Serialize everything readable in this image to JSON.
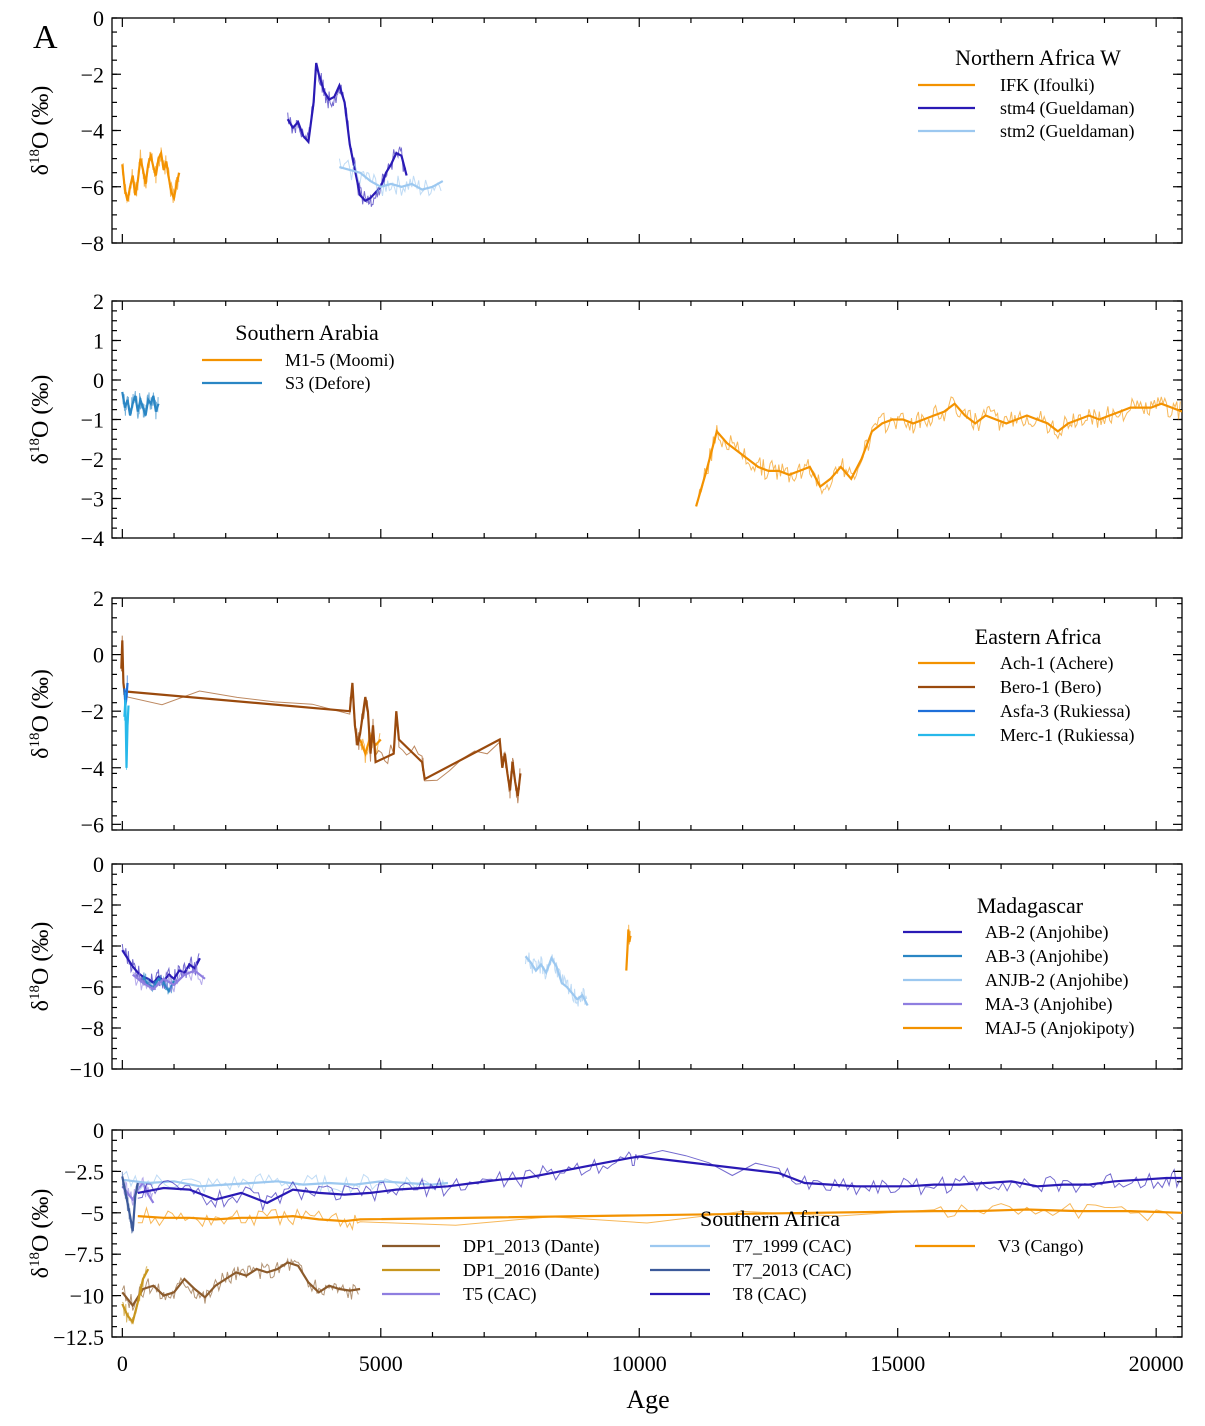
{
  "figure": {
    "panel_letter": "A",
    "xlabel": "Age",
    "ylabel": "δ18O (‰)",
    "ylabel_main": "δ",
    "ylabel_sup": "18",
    "ylabel_rest": "O (‰)"
  },
  "chart_data": [
    {
      "type": "line",
      "title": "Northern Africa W",
      "legend_position": "top-right",
      "xlim": [
        -200,
        20500
      ],
      "ylim": [
        -8,
        0
      ],
      "yticks": [
        0,
        -2,
        -4,
        -6,
        -8
      ],
      "ytick_labels": [
        "0",
        "−2",
        "−4",
        "−6",
        "−8"
      ],
      "xticks": [
        0,
        5000,
        10000,
        15000,
        20000
      ],
      "series": [
        {
          "name": "IFK (Ifoulki)",
          "color": "#f39200",
          "x": [
            0,
            50,
            100,
            150,
            200,
            250,
            300,
            350,
            400,
            450,
            500,
            550,
            600,
            650,
            700,
            750,
            800,
            850,
            900,
            950,
            1000,
            1050,
            1100
          ],
          "y": [
            -5.2,
            -6.1,
            -6.5,
            -6.0,
            -5.6,
            -6.3,
            -5.8,
            -5.0,
            -5.4,
            -5.9,
            -5.2,
            -4.9,
            -5.3,
            -5.6,
            -5.0,
            -4.8,
            -5.4,
            -5.1,
            -5.7,
            -6.2,
            -6.4,
            -5.9,
            -5.5
          ]
        },
        {
          "name": "stm4 (Gueldaman)",
          "color": "#2a1ab5",
          "x": [
            3200,
            3300,
            3400,
            3500,
            3600,
            3700,
            3750,
            3800,
            3900,
            4000,
            4100,
            4200,
            4300,
            4400,
            4500,
            4600,
            4700,
            4800,
            4900,
            5000,
            5100,
            5200,
            5300,
            5400,
            5500
          ],
          "y": [
            -3.6,
            -3.9,
            -3.7,
            -4.2,
            -4.4,
            -3.0,
            -1.6,
            -2.0,
            -2.6,
            -2.9,
            -2.8,
            -2.4,
            -3.0,
            -4.5,
            -5.4,
            -6.3,
            -6.5,
            -6.4,
            -6.2,
            -6.0,
            -5.5,
            -5.2,
            -4.8,
            -4.9,
            -5.6
          ]
        },
        {
          "name": "stm2 (Gueldaman)",
          "color": "#9cc8f0",
          "x": [
            4200,
            4400,
            4600,
            4800,
            5000,
            5200,
            5400,
            5600,
            5800,
            6000,
            6200
          ],
          "y": [
            -5.3,
            -5.4,
            -5.5,
            -5.8,
            -6.0,
            -5.9,
            -6.0,
            -5.9,
            -6.1,
            -6.0,
            -5.8
          ]
        }
      ]
    },
    {
      "type": "line",
      "title": "Southern Arabia",
      "legend_position": "top-left",
      "xlim": [
        -200,
        20500
      ],
      "ylim": [
        -4,
        2
      ],
      "yticks": [
        2,
        1,
        0,
        -1,
        -2,
        -3,
        -4
      ],
      "ytick_labels": [
        "2",
        "1",
        "0",
        "−1",
        "−2",
        "−3",
        "−4"
      ],
      "xticks": [
        0,
        5000,
        10000,
        15000,
        20000
      ],
      "series": [
        {
          "name": "M1-5 (Moomi)",
          "color": "#f39200",
          "x": [
            11100,
            11300,
            11500,
            11700,
            11900,
            12100,
            12300,
            12500,
            12700,
            12900,
            13100,
            13300,
            13500,
            13700,
            13900,
            14100,
            14300,
            14500,
            14700,
            14900,
            15100,
            15300,
            15500,
            15700,
            15900,
            16100,
            16300,
            16500,
            16700,
            16900,
            17100,
            17300,
            17500,
            17700,
            17900,
            18100,
            18300,
            18500,
            18700,
            18900,
            19100,
            19300,
            19500,
            19700,
            19900,
            20100,
            20300,
            20500
          ],
          "y": [
            -3.2,
            -2.3,
            -1.3,
            -1.6,
            -1.8,
            -2.0,
            -2.2,
            -2.3,
            -2.3,
            -2.4,
            -2.3,
            -2.2,
            -2.7,
            -2.5,
            -2.2,
            -2.5,
            -2.0,
            -1.3,
            -1.1,
            -1.0,
            -1.0,
            -1.1,
            -1.0,
            -0.9,
            -0.8,
            -0.6,
            -0.9,
            -1.1,
            -0.9,
            -1.0,
            -1.1,
            -1.0,
            -0.9,
            -1.0,
            -1.1,
            -1.3,
            -1.1,
            -1.0,
            -0.9,
            -1.0,
            -0.9,
            -0.8,
            -0.7,
            -0.7,
            -0.7,
            -0.6,
            -0.7,
            -0.8
          ]
        },
        {
          "name": "S3 (Defore)",
          "color": "#2a86c4",
          "x": [
            0,
            50,
            100,
            150,
            200,
            250,
            300,
            350,
            400,
            450,
            500,
            550,
            600,
            650,
            700
          ],
          "y": [
            -0.3,
            -0.7,
            -0.5,
            -0.9,
            -0.6,
            -0.4,
            -0.8,
            -0.5,
            -0.7,
            -0.9,
            -0.5,
            -0.6,
            -0.4,
            -0.8,
            -0.6
          ]
        }
      ]
    },
    {
      "type": "line",
      "title": "Eastern Africa",
      "legend_position": "top-right",
      "xlim": [
        -200,
        20500
      ],
      "ylim": [
        -6.2,
        2
      ],
      "yticks": [
        2,
        0,
        -2,
        -4,
        -6
      ],
      "ytick_labels": [
        "2",
        "0",
        "−2",
        "−4",
        "−6"
      ],
      "xticks": [
        0,
        5000,
        10000,
        15000,
        20000
      ],
      "series": [
        {
          "name": "Ach-1 (Achere)",
          "color": "#f39200",
          "x": [
            4600,
            4700,
            4800,
            4900,
            5000
          ],
          "y": [
            -3.0,
            -3.5,
            -2.9,
            -3.2,
            -3.0
          ]
        },
        {
          "name": "Bero-1 (Bero)",
          "color": "#9a4a0d",
          "x": [
            -20,
            0,
            20,
            40,
            4400,
            4450,
            4500,
            4550,
            4600,
            4700,
            4750,
            4800,
            4850,
            4900,
            5250,
            5300,
            5350,
            5800,
            5850,
            7300,
            7350,
            7400,
            7450,
            7500,
            7550,
            7600,
            7650,
            7700
          ],
          "y": [
            -0.5,
            0.5,
            -1.0,
            -1.3,
            -2.0,
            -1.0,
            -2.5,
            -3.2,
            -2.8,
            -1.5,
            -2.0,
            -3.5,
            -2.5,
            -3.8,
            -3.5,
            -2.0,
            -3.0,
            -3.8,
            -4.4,
            -3.0,
            -4.0,
            -3.5,
            -4.2,
            -4.8,
            -3.8,
            -4.5,
            -5.0,
            -4.2
          ]
        },
        {
          "name": "Asfa-3 (Rukiessa)",
          "color": "#1e6fd9",
          "x": [
            40,
            60,
            80,
            100
          ],
          "y": [
            -1.2,
            -1.8,
            -1.5,
            -1.0
          ]
        },
        {
          "name": "Merc-1 (Rukiessa)",
          "color": "#27b8ea",
          "x": [
            40,
            60,
            80,
            100,
            120
          ],
          "y": [
            -2.2,
            -1.6,
            -4.0,
            -2.5,
            -1.8
          ]
        }
      ]
    },
    {
      "type": "line",
      "title": "Madagascar",
      "legend_position": "right",
      "xlim": [
        -200,
        20500
      ],
      "ylim": [
        -10,
        0
      ],
      "yticks": [
        0,
        -2,
        -4,
        -6,
        -8,
        -10
      ],
      "ytick_labels": [
        "0",
        "−2",
        "−4",
        "−6",
        "−8",
        "−10"
      ],
      "xticks": [
        0,
        5000,
        10000,
        15000,
        20000
      ],
      "series": [
        {
          "name": "AB-2 (Anjohibe)",
          "color": "#2a1ab5",
          "x": [
            0,
            100,
            200,
            300,
            400,
            500,
            600,
            700,
            800,
            900,
            1000,
            1100,
            1200,
            1300,
            1400,
            1500
          ],
          "y": [
            -4.2,
            -4.6,
            -5.0,
            -5.3,
            -5.5,
            -5.6,
            -5.8,
            -5.5,
            -5.7,
            -5.4,
            -5.6,
            -5.2,
            -5.3,
            -4.9,
            -5.1,
            -4.6
          ]
        },
        {
          "name": "AB-3 (Anjohibe)",
          "color": "#2a86c4",
          "x": [
            400,
            500,
            600,
            700,
            800,
            900,
            1000
          ],
          "y": [
            -5.5,
            -5.9,
            -6.0,
            -5.6,
            -5.8,
            -6.2,
            -5.7
          ]
        },
        {
          "name": "ANJB-2 (Anjohibe)",
          "color": "#9cc8f0",
          "x": [
            7800,
            7900,
            8000,
            8100,
            8200,
            8300,
            8400,
            8500,
            8600,
            8700,
            8800,
            8900,
            9000
          ],
          "y": [
            -4.5,
            -4.8,
            -5.2,
            -4.9,
            -5.3,
            -4.6,
            -5.0,
            -5.8,
            -6.0,
            -6.3,
            -6.6,
            -6.4,
            -6.9
          ]
        },
        {
          "name": "MA-3 (Anjohibe)",
          "color": "#8f7ee0",
          "x": [
            200,
            400,
            600,
            800,
            1000,
            1200,
            1400,
            1600
          ],
          "y": [
            -5.4,
            -5.8,
            -6.1,
            -5.6,
            -5.9,
            -5.4,
            -5.2,
            -5.6
          ]
        },
        {
          "name": "MAJ-5 (Anjokipoty)",
          "color": "#f39200",
          "x": [
            9750,
            9770,
            9790,
            9810,
            9830
          ],
          "y": [
            -5.2,
            -4.2,
            -3.2,
            -3.8,
            -3.5
          ]
        }
      ]
    },
    {
      "type": "line",
      "title": "Southern Africa",
      "legend_position": "bottom-center",
      "xlim": [
        -200,
        20500
      ],
      "ylim": [
        -12.5,
        0
      ],
      "yticks": [
        0,
        -2.5,
        -5,
        -7.5,
        -10,
        -12.5
      ],
      "ytick_labels": [
        "0",
        "−2.5",
        "−5",
        "−7.5",
        "−10",
        "−12.5"
      ],
      "xticks": [
        0,
        5000,
        10000,
        15000,
        20000
      ],
      "xtick_labels": [
        "0",
        "5000",
        "10000",
        "15000",
        "20000"
      ],
      "series": [
        {
          "name": "DP1_2013 (Dante)",
          "color": "#8b5a2b",
          "x": [
            0,
            200,
            400,
            600,
            800,
            1000,
            1200,
            1400,
            1600,
            1800,
            2000,
            2200,
            2400,
            2600,
            2800,
            3000,
            3200,
            3400,
            3600,
            3800,
            4000,
            4200,
            4400,
            4600
          ],
          "y": [
            -9.8,
            -10.6,
            -9.6,
            -9.4,
            -10.0,
            -9.8,
            -9.0,
            -9.6,
            -10.1,
            -9.4,
            -9.0,
            -8.6,
            -8.8,
            -8.4,
            -8.6,
            -8.4,
            -8.0,
            -8.2,
            -9.2,
            -9.8,
            -9.4,
            -9.6,
            -9.7,
            -9.6
          ]
        },
        {
          "name": "DP1_2016 (Dante)",
          "color": "#c8961e",
          "x": [
            0,
            100,
            200,
            300,
            400,
            500
          ],
          "y": [
            -10.5,
            -11.2,
            -11.6,
            -10.4,
            -9.0,
            -8.4
          ]
        },
        {
          "name": "T5 (CAC)",
          "color": "#8f7ee0",
          "x": [
            0,
            100,
            200,
            300,
            400,
            500,
            600
          ],
          "y": [
            -3.4,
            -3.8,
            -4.2,
            -3.6,
            -3.2,
            -3.9,
            -4.4
          ]
        },
        {
          "name": "T7_1999 (CAC)",
          "color": "#9cc8f0",
          "x": [
            0,
            500,
            1000,
            1500,
            2000,
            2500,
            3000,
            3500,
            4000,
            4500,
            5000,
            5500,
            6000,
            6300
          ],
          "y": [
            -3.0,
            -3.2,
            -3.1,
            -3.4,
            -3.3,
            -3.2,
            -3.1,
            -3.3,
            -3.2,
            -3.3,
            -3.1,
            -3.2,
            -3.3,
            -3.2
          ]
        },
        {
          "name": "T7_2013 (CAC)",
          "color": "#3c5a9a",
          "x": [
            0,
            50,
            100,
            150,
            200,
            250,
            300
          ],
          "y": [
            -2.8,
            -3.6,
            -4.4,
            -5.2,
            -6.1,
            -4.0,
            -3.2
          ]
        },
        {
          "name": "T8 (CAC)",
          "color": "#2a1ab5",
          "x": [
            300,
            800,
            1300,
            1800,
            2300,
            2800,
            3300,
            3800,
            4300,
            4800,
            5300,
            5800,
            6300,
            6800,
            7300,
            7800,
            8300,
            8800,
            9300,
            9800,
            10000,
            12700,
            13200,
            13700,
            14200,
            14700,
            15200,
            15700,
            16200,
            16700,
            17200,
            17700,
            18200,
            18700,
            19200,
            19700,
            20200,
            20500
          ],
          "y": [
            -3.8,
            -3.5,
            -3.6,
            -4.2,
            -3.8,
            -4.4,
            -3.6,
            -3.8,
            -3.9,
            -3.8,
            -3.6,
            -3.5,
            -3.4,
            -3.2,
            -3.0,
            -2.9,
            -2.6,
            -2.3,
            -2.0,
            -1.7,
            -1.6,
            -2.6,
            -3.2,
            -3.3,
            -3.4,
            -3.4,
            -3.4,
            -3.3,
            -3.3,
            -3.2,
            -3.1,
            -3.4,
            -3.3,
            -3.3,
            -3.1,
            -3.0,
            -2.9,
            -2.9
          ]
        },
        {
          "name": "V3 (Cango)",
          "color": "#f39200",
          "x": [
            300,
            800,
            1300,
            1800,
            2300,
            2800,
            3300,
            3800,
            4300,
            4600,
            15700,
            16500,
            17500,
            18500,
            19500,
            20500
          ],
          "y": [
            -5.2,
            -5.3,
            -5.3,
            -5.4,
            -5.3,
            -5.3,
            -5.2,
            -5.4,
            -5.5,
            -5.4,
            -4.9,
            -4.9,
            -4.8,
            -4.9,
            -4.9,
            -5.0
          ]
        }
      ]
    }
  ]
}
